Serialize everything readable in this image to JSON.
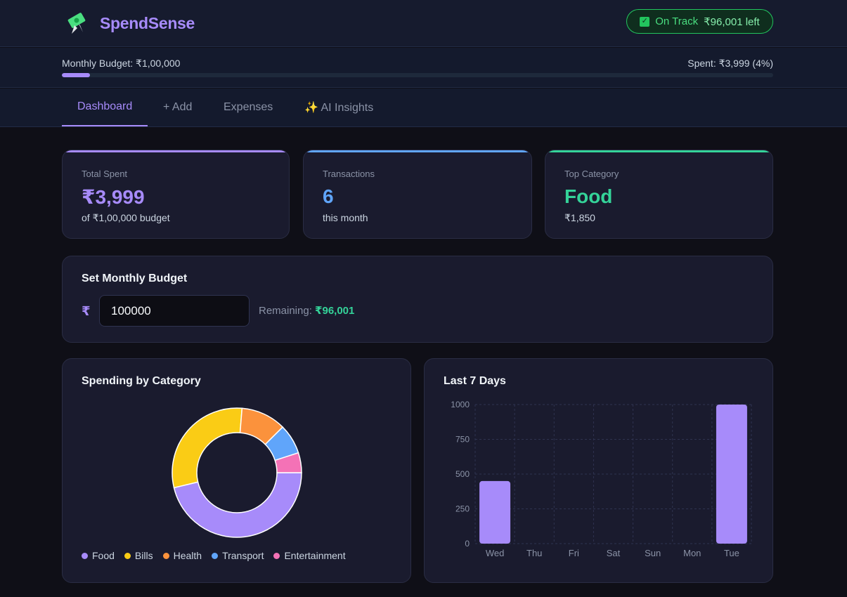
{
  "header": {
    "brand": "SpendSense",
    "status": {
      "label": "On Track",
      "left_text": "₹96,001 left"
    }
  },
  "budget_bar": {
    "budget_label": "Monthly Budget: ₹1,00,000",
    "spent_label": "Spent: ₹3,999 (4%)",
    "progress_percent": 4
  },
  "tabs": [
    {
      "label": "Dashboard",
      "active": true
    },
    {
      "label": "+ Add",
      "active": false
    },
    {
      "label": "Expenses",
      "active": false
    },
    {
      "label": "✨ AI Insights",
      "active": false
    }
  ],
  "stats": [
    {
      "label": "Total Spent",
      "value": "₹3,999",
      "sub": "of ₹1,00,000 budget",
      "color": "#a78bfa"
    },
    {
      "label": "Transactions",
      "value": "6",
      "sub": "this month",
      "color": "#60a5fa"
    },
    {
      "label": "Top Category",
      "value": "Food",
      "sub": "₹1,850",
      "color": "#34d399"
    }
  ],
  "set_budget": {
    "title": "Set Monthly Budget",
    "currency": "₹",
    "input_value": "100000",
    "remaining_label": "Remaining: ",
    "remaining_value": "₹96,001"
  },
  "category_card": {
    "title": "Spending by Category"
  },
  "days_card": {
    "title": "Last 7 Days"
  },
  "chart_data": [
    {
      "type": "pie",
      "categories": [
        "Food",
        "Bills",
        "Health",
        "Transport",
        "Entertainment"
      ],
      "values": [
        1850,
        1200,
        450,
        300,
        199
      ],
      "colors": [
        "#a78bfa",
        "#facc15",
        "#fb923c",
        "#60a5fa",
        "#f472b6"
      ],
      "legend": "bottom"
    },
    {
      "type": "bar",
      "categories": [
        "Wed",
        "Thu",
        "Fri",
        "Sat",
        "Sun",
        "Mon",
        "Tue"
      ],
      "values": [
        450,
        0,
        0,
        0,
        0,
        0,
        1000
      ],
      "ylim": [
        0,
        1000
      ],
      "yticks": [
        0,
        250,
        500,
        750,
        1000
      ],
      "grid": true,
      "color": "#a78bfa"
    }
  ]
}
